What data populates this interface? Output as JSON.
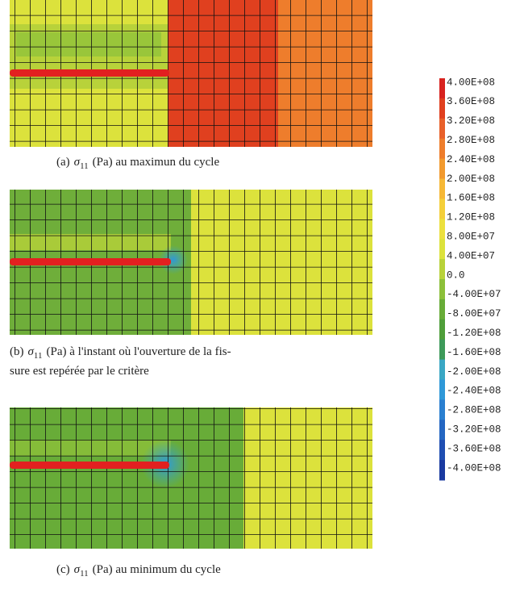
{
  "panels": [
    {
      "label": "(a)",
      "symbol": "σ",
      "subscript": "11",
      "text": "(Pa) au maximun du cycle"
    },
    {
      "label": "(b)",
      "symbol": "σ",
      "subscript": "11",
      "text": "(Pa) à l'instant où l'ouverture de la fis-",
      "text2": "sure est repérée par le critère"
    },
    {
      "label": "(c)",
      "symbol": "σ",
      "subscript": "11",
      "text": "(Pa) au minimum du cycle"
    }
  ],
  "colorbar": {
    "labels": [
      "4.00E+08",
      "3.60E+08",
      "3.20E+08",
      "2.80E+08",
      "2.40E+08",
      "2.00E+08",
      "1.60E+08",
      "1.20E+08",
      "8.00E+07",
      "4.00E+07",
      "0.0",
      "-4.00E+07",
      "-8.00E+07",
      "-1.20E+08",
      "-1.60E+08",
      "-2.00E+08",
      "-2.40E+08",
      "-2.80E+08",
      "-3.20E+08",
      "-3.60E+08",
      "-4.00E+08"
    ],
    "colors": [
      "#d8231f",
      "#e0401f",
      "#e8602a",
      "#ee7d2c",
      "#f29a2e",
      "#f6b836",
      "#f4cf3a",
      "#ece03e",
      "#dce23c",
      "#b8d23a",
      "#8cc03a",
      "#68ac38",
      "#4f9e3a",
      "#3e9a5a",
      "#3aa7c4",
      "#2f98d8",
      "#2a7fd0",
      "#2466c2",
      "#1f4eb2",
      "#1a3aa0"
    ]
  }
}
